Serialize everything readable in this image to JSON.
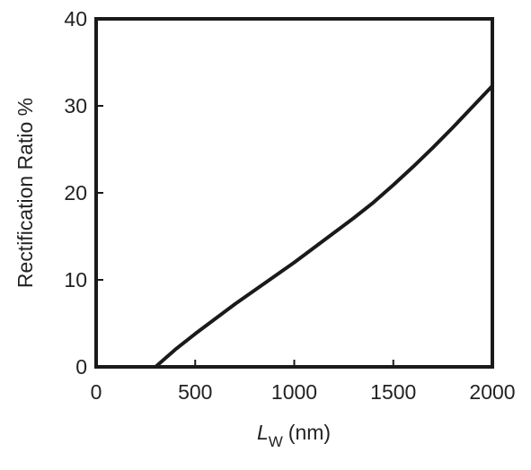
{
  "chart_data": {
    "type": "line",
    "xlabel": {
      "symbol": "L",
      "subscript": "W",
      "unit": "(nm)"
    },
    "ylabel": "Rectification Ratio %",
    "x": [
      0,
      300,
      350,
      400,
      500,
      600,
      700,
      800,
      900,
      1000,
      1100,
      1200,
      1300,
      1400,
      1500,
      1600,
      1700,
      1800,
      1900,
      2000
    ],
    "values": [
      0,
      0,
      1,
      2,
      3.8,
      5.5,
      7.2,
      8.8,
      10.4,
      12,
      13.7,
      15.4,
      17.1,
      18.9,
      20.9,
      23,
      25.2,
      27.5,
      29.9,
      32.3
    ],
    "color": "#1a1a1a",
    "xlim": [
      0,
      2000
    ],
    "xticks": [
      0,
      500,
      1000,
      1500,
      2000
    ],
    "ylim": [
      0,
      40
    ],
    "yticks": [
      0,
      10,
      20,
      30,
      40
    ]
  }
}
